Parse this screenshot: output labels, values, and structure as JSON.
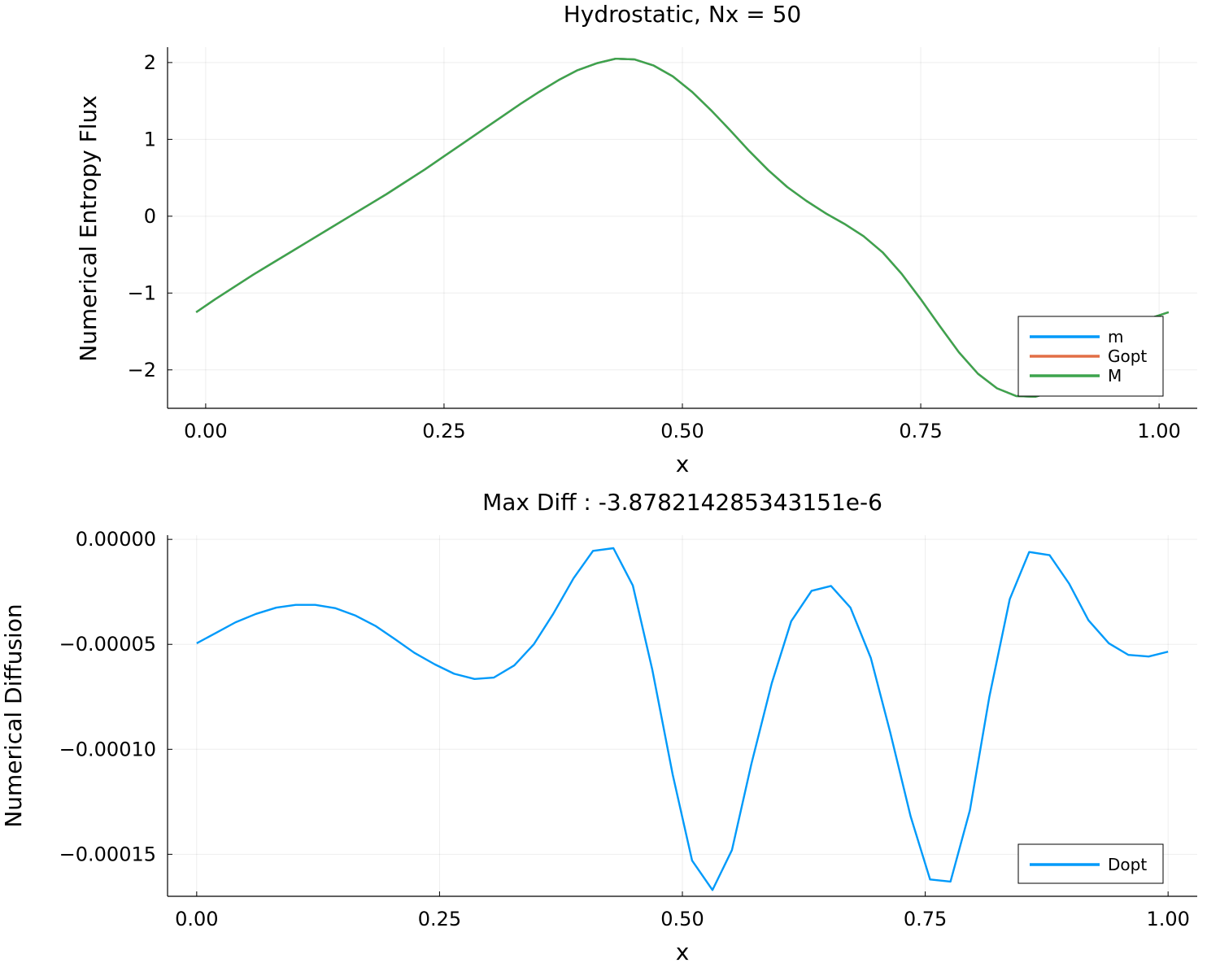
{
  "chart_data": [
    {
      "type": "line",
      "title": "Hydrostatic, Nx = 50",
      "xlabel": "x",
      "ylabel": "Numerical Entropy Flux",
      "xlim": [
        -0.04,
        1.04
      ],
      "ylim": [
        -2.5,
        2.2
      ],
      "xticks": [
        0,
        0.25,
        0.5,
        0.75,
        1.0
      ],
      "xtick_labels": [
        "0.00",
        "0.25",
        "0.50",
        "0.75",
        "1.00"
      ],
      "yticks": [
        -2,
        -1,
        0,
        1,
        2
      ],
      "ytick_labels": [
        "−2",
        "−1",
        "0",
        "1",
        "2"
      ],
      "grid": true,
      "legend_position": "bottom-right",
      "x": [
        -0.01,
        0.01,
        0.03,
        0.05,
        0.07,
        0.09,
        0.11,
        0.13,
        0.15,
        0.17,
        0.19,
        0.21,
        0.23,
        0.25,
        0.27,
        0.29,
        0.31,
        0.33,
        0.35,
        0.37,
        0.39,
        0.41,
        0.43,
        0.45,
        0.47,
        0.49,
        0.51,
        0.53,
        0.55,
        0.57,
        0.59,
        0.61,
        0.63,
        0.65,
        0.67,
        0.69,
        0.71,
        0.73,
        0.75,
        0.77,
        0.79,
        0.81,
        0.83,
        0.85,
        0.87,
        0.89,
        0.91,
        0.93,
        0.95,
        0.97,
        0.99,
        1.01
      ],
      "series": [
        {
          "name": "m",
          "color": "#009AFA",
          "values": [
            -1.25,
            -1.08,
            -0.92,
            -0.76,
            -0.61,
            -0.46,
            -0.31,
            -0.16,
            -0.01,
            0.14,
            0.29,
            0.45,
            0.61,
            0.78,
            0.95,
            1.12,
            1.29,
            1.46,
            1.62,
            1.77,
            1.9,
            1.99,
            2.05,
            2.04,
            1.96,
            1.82,
            1.62,
            1.38,
            1.12,
            0.85,
            0.6,
            0.38,
            0.2,
            0.04,
            -0.1,
            -0.26,
            -0.47,
            -0.75,
            -1.08,
            -1.43,
            -1.77,
            -2.05,
            -2.24,
            -2.34,
            -2.35,
            -2.28,
            -2.08,
            -1.83,
            -1.6,
            -1.43,
            -1.33,
            -1.25
          ]
        },
        {
          "name": "Gopt",
          "color": "#E26F46",
          "values": [
            -1.25,
            -1.08,
            -0.92,
            -0.76,
            -0.61,
            -0.46,
            -0.31,
            -0.16,
            -0.01,
            0.14,
            0.29,
            0.45,
            0.61,
            0.78,
            0.95,
            1.12,
            1.29,
            1.46,
            1.62,
            1.77,
            1.9,
            1.99,
            2.05,
            2.04,
            1.96,
            1.82,
            1.62,
            1.38,
            1.12,
            0.85,
            0.6,
            0.38,
            0.2,
            0.04,
            -0.1,
            -0.26,
            -0.47,
            -0.75,
            -1.08,
            -1.43,
            -1.77,
            -2.05,
            -2.24,
            -2.34,
            -2.35,
            -2.28,
            -2.08,
            -1.83,
            -1.6,
            -1.43,
            -1.33,
            -1.25
          ]
        },
        {
          "name": "M",
          "color": "#3DA44D",
          "values": [
            -1.25,
            -1.08,
            -0.92,
            -0.76,
            -0.61,
            -0.46,
            -0.31,
            -0.16,
            -0.01,
            0.14,
            0.29,
            0.45,
            0.61,
            0.78,
            0.95,
            1.12,
            1.29,
            1.46,
            1.62,
            1.77,
            1.9,
            1.99,
            2.05,
            2.04,
            1.96,
            1.82,
            1.62,
            1.38,
            1.12,
            0.85,
            0.6,
            0.38,
            0.2,
            0.04,
            -0.1,
            -0.26,
            -0.47,
            -0.75,
            -1.08,
            -1.43,
            -1.77,
            -2.05,
            -2.24,
            -2.34,
            -2.35,
            -2.28,
            -2.08,
            -1.83,
            -1.6,
            -1.43,
            -1.33,
            -1.25
          ]
        }
      ]
    },
    {
      "type": "line",
      "title": "Max Diff : -3.878214285343151e-6",
      "xlabel": "x",
      "ylabel": "Numerical Diffusion",
      "xlim": [
        -0.03,
        1.03
      ],
      "ylim": [
        -0.00017,
        2e-06
      ],
      "xticks": [
        0,
        0.25,
        0.5,
        0.75,
        1.0
      ],
      "xtick_labels": [
        "0.00",
        "0.25",
        "0.50",
        "0.75",
        "1.00"
      ],
      "yticks": [
        0,
        -5e-05,
        -0.0001,
        -0.00015
      ],
      "ytick_labels": [
        "0.00000",
        "−0.00005",
        "−0.00010",
        "−0.00015"
      ],
      "grid": true,
      "legend_position": "bottom-right",
      "x": [
        0.0,
        0.02,
        0.04,
        0.061,
        0.082,
        0.102,
        0.122,
        0.143,
        0.163,
        0.184,
        0.204,
        0.224,
        0.245,
        0.265,
        0.286,
        0.306,
        0.327,
        0.347,
        0.367,
        0.388,
        0.408,
        0.429,
        0.449,
        0.469,
        0.49,
        0.51,
        0.531,
        0.551,
        0.571,
        0.592,
        0.612,
        0.633,
        0.653,
        0.673,
        0.694,
        0.714,
        0.735,
        0.755,
        0.776,
        0.796,
        0.816,
        0.837,
        0.857,
        0.878,
        0.898,
        0.918,
        0.939,
        0.959,
        0.98,
        1.0
      ],
      "series": [
        {
          "name": "Dopt",
          "color": "#009AFA",
          "values": [
            -4.95e-05,
            -4.45e-05,
            -3.95e-05,
            -3.55e-05,
            -3.25e-05,
            -3.12e-05,
            -3.12e-05,
            -3.28e-05,
            -3.62e-05,
            -4.12e-05,
            -4.75e-05,
            -5.4e-05,
            -5.95e-05,
            -6.4e-05,
            -6.65e-05,
            -6.58e-05,
            -6e-05,
            -5e-05,
            -3.55e-05,
            -1.85e-05,
            -5.5e-06,
            -4.2e-06,
            -2.2e-05,
            -6.2e-05,
            -0.000112,
            -0.000153,
            -0.000167,
            -0.000148,
            -0.000107,
            -6.85e-05,
            -3.9e-05,
            -2.45e-05,
            -2.22e-05,
            -3.25e-05,
            -5.65e-05,
            -9.2e-05,
            -0.000132,
            -0.000162,
            -0.000163,
            -0.000129,
            -7.5e-05,
            -2.85e-05,
            -6e-06,
            -7.5e-06,
            -2.1e-05,
            -3.85e-05,
            -4.95e-05,
            -5.5e-05,
            -5.58e-05,
            -5.35e-05
          ]
        }
      ]
    }
  ]
}
